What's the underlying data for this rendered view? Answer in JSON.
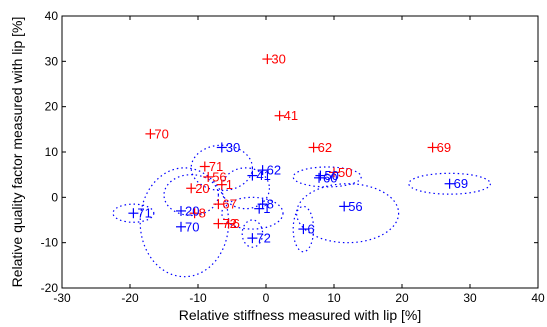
{
  "chart_data": {
    "type": "scatter",
    "title": "",
    "xlabel": "Relative stiffness measured with lip [%]",
    "ylabel": "Relative quality factor measured with lip [%]",
    "xlim": [
      -30,
      40
    ],
    "ylim": [
      -20,
      40
    ],
    "xticks": [
      -30,
      -20,
      -10,
      0,
      10,
      20,
      30,
      40
    ],
    "yticks": [
      -20,
      -10,
      0,
      10,
      20,
      30,
      40
    ],
    "grid": false,
    "marker": "+",
    "colors": {
      "red": "#ff0000",
      "blue": "#0000ff",
      "ellipse": "#0000ff",
      "axis": "#000000"
    },
    "series": [
      {
        "color": "red",
        "points": [
          {
            "label": "30",
            "x": 0.2,
            "y": 30.5
          },
          {
            "label": "41",
            "x": 2.0,
            "y": 18.0
          },
          {
            "label": "70",
            "x": -17.0,
            "y": 14.0
          },
          {
            "label": "62",
            "x": 7.0,
            "y": 11.0
          },
          {
            "label": "69",
            "x": 24.5,
            "y": 11.0
          },
          {
            "label": "71",
            "x": -9.0,
            "y": 6.8
          },
          {
            "label": "50",
            "x": 10.0,
            "y": 5.5
          },
          {
            "label": "56",
            "x": -8.5,
            "y": 4.5
          },
          {
            "label": "1",
            "x": -6.5,
            "y": 2.8
          },
          {
            "label": "20",
            "x": -11.0,
            "y": 2.0
          },
          {
            "label": "67",
            "x": -7.0,
            "y": -1.5
          },
          {
            "label": "8",
            "x": -10.5,
            "y": -3.5
          },
          {
            "label": "72",
            "x": -7.0,
            "y": -5.8
          },
          {
            "label": "6",
            "x": -5.5,
            "y": -5.8
          }
        ]
      },
      {
        "color": "blue",
        "points": [
          {
            "label": "30",
            "x": -6.5,
            "y": 11.0
          },
          {
            "label": "62",
            "x": -0.5,
            "y": 6.0
          },
          {
            "label": "41",
            "x": -2.0,
            "y": 4.8
          },
          {
            "label": "50",
            "x": 8.0,
            "y": 4.8
          },
          {
            "label": "60",
            "x": 7.8,
            "y": 4.3
          },
          {
            "label": "69",
            "x": 27.0,
            "y": 3.0
          },
          {
            "label": "8",
            "x": -0.5,
            "y": -1.5
          },
          {
            "label": "56",
            "x": 11.5,
            "y": -2.0
          },
          {
            "label": "1",
            "x": -1.0,
            "y": -2.5
          },
          {
            "label": "71",
            "x": -19.5,
            "y": -3.5
          },
          {
            "label": "20",
            "x": -12.5,
            "y": -3.0
          },
          {
            "label": "70",
            "x": -12.5,
            "y": -6.5
          },
          {
            "label": "6",
            "x": 5.5,
            "y": -7.0
          },
          {
            "label": "72",
            "x": -2.0,
            "y": -9.0
          }
        ]
      }
    ],
    "ellipses": [
      {
        "cx": -12.0,
        "cy": -5.5,
        "rx": 6.5,
        "ry": 12.0
      },
      {
        "cx": -6.5,
        "cy": 6.5,
        "rx": 4.5,
        "ry": 5.0
      },
      {
        "cx": -3.0,
        "cy": 2.0,
        "rx": 3.5,
        "ry": 4.5
      },
      {
        "cx": -2.0,
        "cy": -3.5,
        "rx": 4.5,
        "ry": 3.5
      },
      {
        "cx": 9.0,
        "cy": 4.5,
        "rx": 5.0,
        "ry": 2.2
      },
      {
        "cx": 12.0,
        "cy": -3.5,
        "rx": 7.5,
        "ry": 6.5
      },
      {
        "cx": 27.0,
        "cy": 3.0,
        "rx": 6.0,
        "ry": 2.3
      },
      {
        "cx": 5.5,
        "cy": -7.0,
        "rx": 1.5,
        "ry": 5.0
      },
      {
        "cx": -2.0,
        "cy": -8.0,
        "rx": 1.5,
        "ry": 3.0
      },
      {
        "cx": -19.5,
        "cy": -3.5,
        "rx": 3.0,
        "ry": 2.0
      },
      {
        "cx": -11.0,
        "cy": 0.5,
        "rx": 4.0,
        "ry": 4.5
      }
    ]
  }
}
